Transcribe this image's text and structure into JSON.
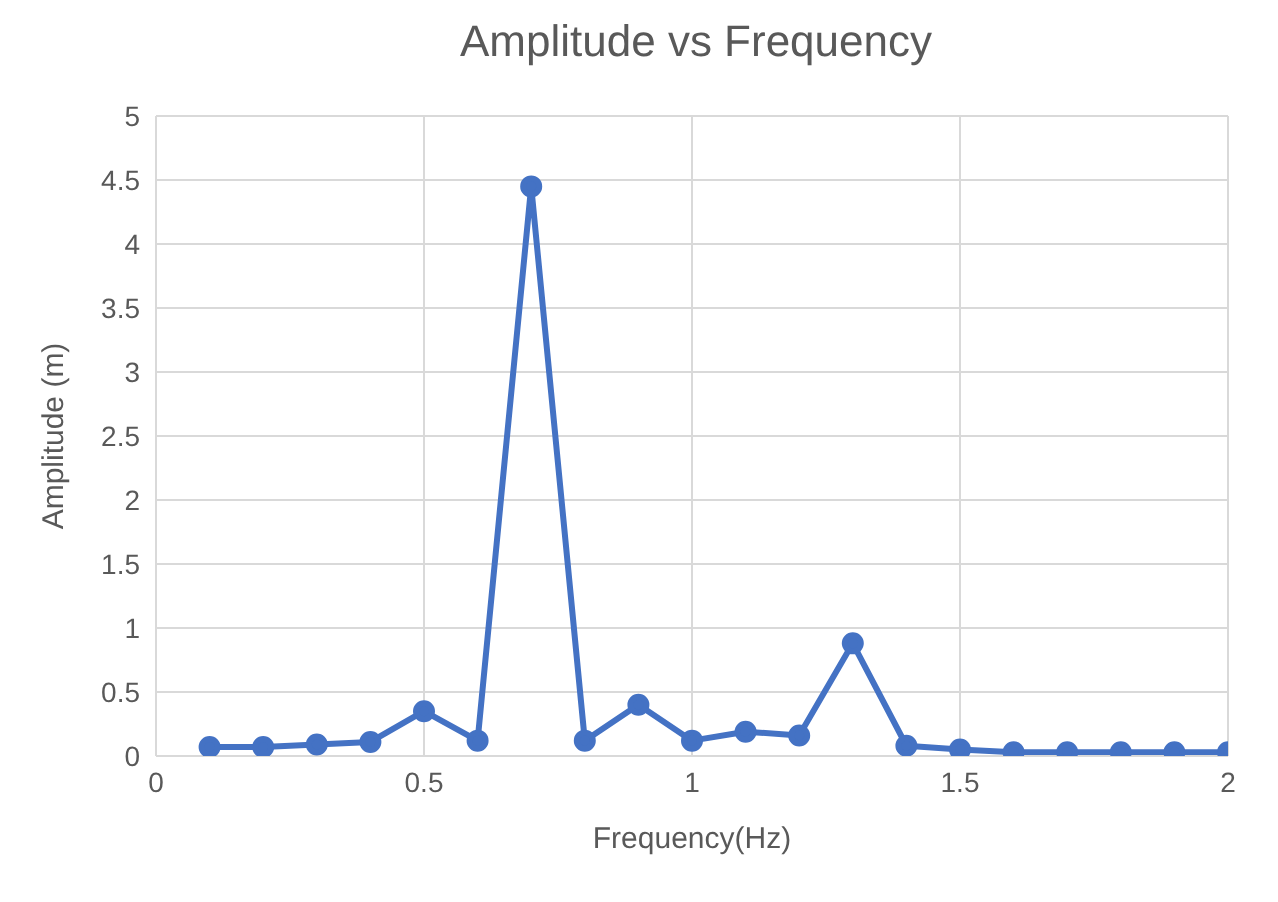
{
  "chart_data": {
    "type": "line",
    "title": "Amplitude vs Frequency",
    "xlabel": "Frequency(Hz)",
    "ylabel": "Amplitude (m)",
    "x": [
      0.1,
      0.2,
      0.3,
      0.4,
      0.5,
      0.6,
      0.7,
      0.8,
      0.9,
      1.0,
      1.1,
      1.2,
      1.3,
      1.4,
      1.5,
      1.6,
      1.7,
      1.8,
      1.9,
      2.0
    ],
    "series": [
      {
        "color": "#4472c4",
        "values": [
          0.07,
          0.07,
          0.09,
          0.11,
          0.35,
          0.12,
          4.45,
          0.12,
          0.4,
          0.12,
          0.19,
          0.16,
          0.88,
          0.08,
          0.05,
          0.03,
          0.03,
          0.03,
          0.03,
          0.03
        ]
      }
    ],
    "xlim": [
      0,
      2
    ],
    "xticks": [
      0,
      0.5,
      1,
      1.5,
      2
    ],
    "ylim": [
      0,
      5
    ],
    "yticks": [
      0,
      0.5,
      1,
      1.5,
      2,
      2.5,
      3,
      3.5,
      4,
      4.5,
      5
    ],
    "grid": true,
    "marker": "circle",
    "line_style": "solid"
  }
}
